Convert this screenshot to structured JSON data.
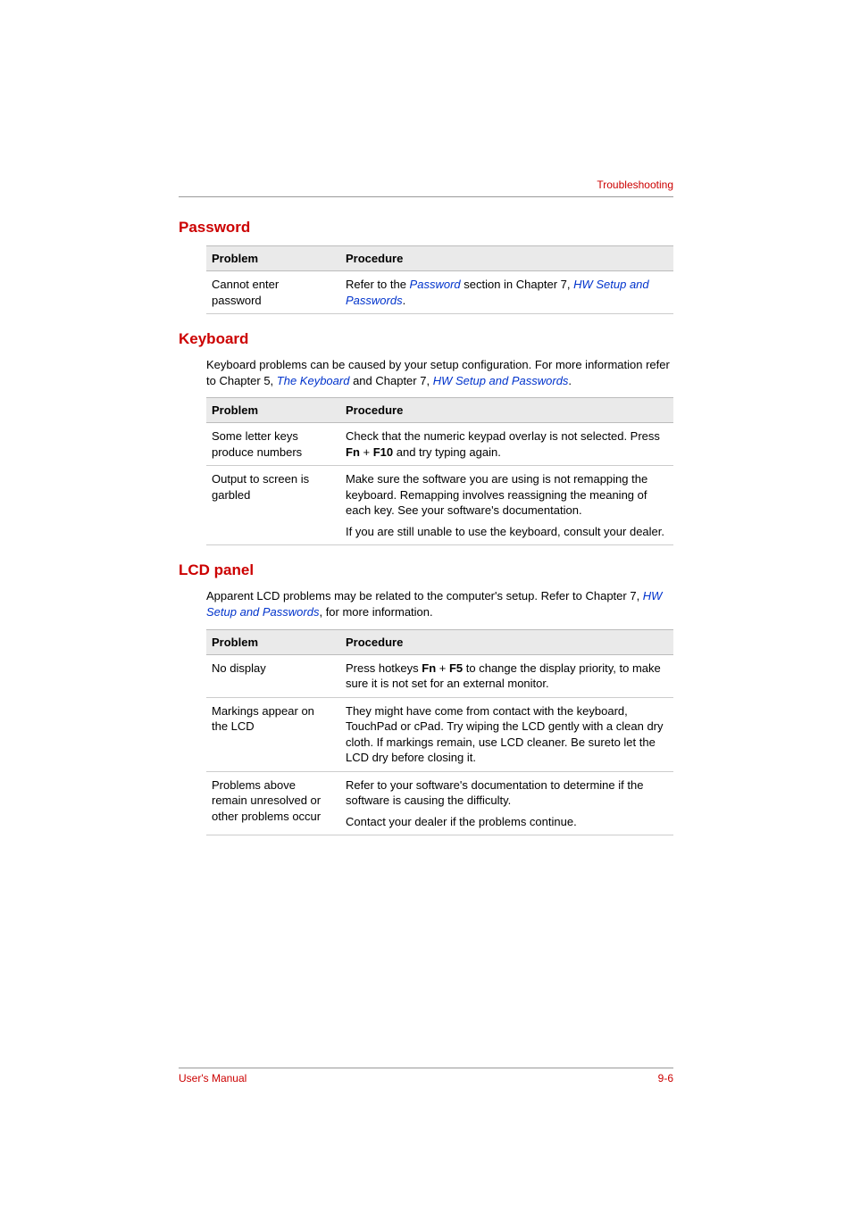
{
  "colors": {
    "accent": "#cc0000",
    "link": "#0033cc",
    "rule": "#999999",
    "row_border": "#cccccc",
    "header_bg": "#eaeaea",
    "text": "#000000",
    "background": "#ffffff"
  },
  "typography": {
    "body_fontsize_pt": 10,
    "heading_fontsize_pt": 13,
    "running_head_fontsize_pt": 9,
    "font_family": "Arial"
  },
  "running_head": "Troubleshooting",
  "sections": {
    "password": {
      "title": "Password",
      "table": {
        "headers": [
          "Problem",
          "Procedure"
        ],
        "rows": [
          {
            "problem": "Cannot enter password",
            "procedure": {
              "pre": "Refer to the ",
              "link1": "Password",
              "mid": " section in Chapter 7, ",
              "link2": "HW Setup and Passwords",
              "post": "."
            }
          }
        ]
      }
    },
    "keyboard": {
      "title": "Keyboard",
      "intro": {
        "pre": "Keyboard problems can be caused by your setup configuration. For more information refer to Chapter 5, ",
        "link1": "The Keyboard",
        "mid": " and Chapter 7, ",
        "link2": "HW Setup and Passwords",
        "post": "."
      },
      "table": {
        "headers": [
          "Problem",
          "Procedure"
        ],
        "rows": [
          {
            "problem": "Some letter keys produce numbers",
            "procedure_pre": "Check that the numeric keypad overlay is not selected. Press ",
            "procedure_b1": "Fn",
            "procedure_mid": " + ",
            "procedure_b2": "F10",
            "procedure_post": " and try typing again."
          },
          {
            "problem": "Output to screen is garbled",
            "procedure_p1": "Make sure the software you are using is not remapping the keyboard. Remapping involves reassigning the meaning of each key. See your software's documentation.",
            "procedure_p2": "If you are still unable to use the keyboard, consult your dealer."
          }
        ]
      }
    },
    "lcd": {
      "title": "LCD panel",
      "intro": {
        "pre": "Apparent LCD problems may be related to the computer's setup. Refer to Chapter 7, ",
        "link1": "HW Setup and Passwords",
        "post": ", for more information."
      },
      "table": {
        "headers": [
          "Problem",
          "Procedure"
        ],
        "rows": [
          {
            "problem": "No display",
            "procedure_pre": "Press hotkeys ",
            "procedure_b1": "Fn",
            "procedure_mid": " + ",
            "procedure_b2": "F5",
            "procedure_post": " to change the display priority, to make sure it is not set for an external monitor."
          },
          {
            "problem": "Markings appear on the LCD",
            "procedure": "They might have come from contact with the keyboard, TouchPad or cPad. Try wiping the LCD gently with a clean dry cloth. If markings remain, use LCD cleaner. Be sureto let the LCD dry before closing it."
          },
          {
            "problem": "Problems above remain unresolved or other problems occur",
            "procedure_p1": "Refer to your software's documentation to determine if the software is causing the difficulty.",
            "procedure_p2": "Contact your dealer if the problems continue."
          }
        ]
      }
    }
  },
  "footer": {
    "left": "User's Manual",
    "right": "9-6"
  }
}
